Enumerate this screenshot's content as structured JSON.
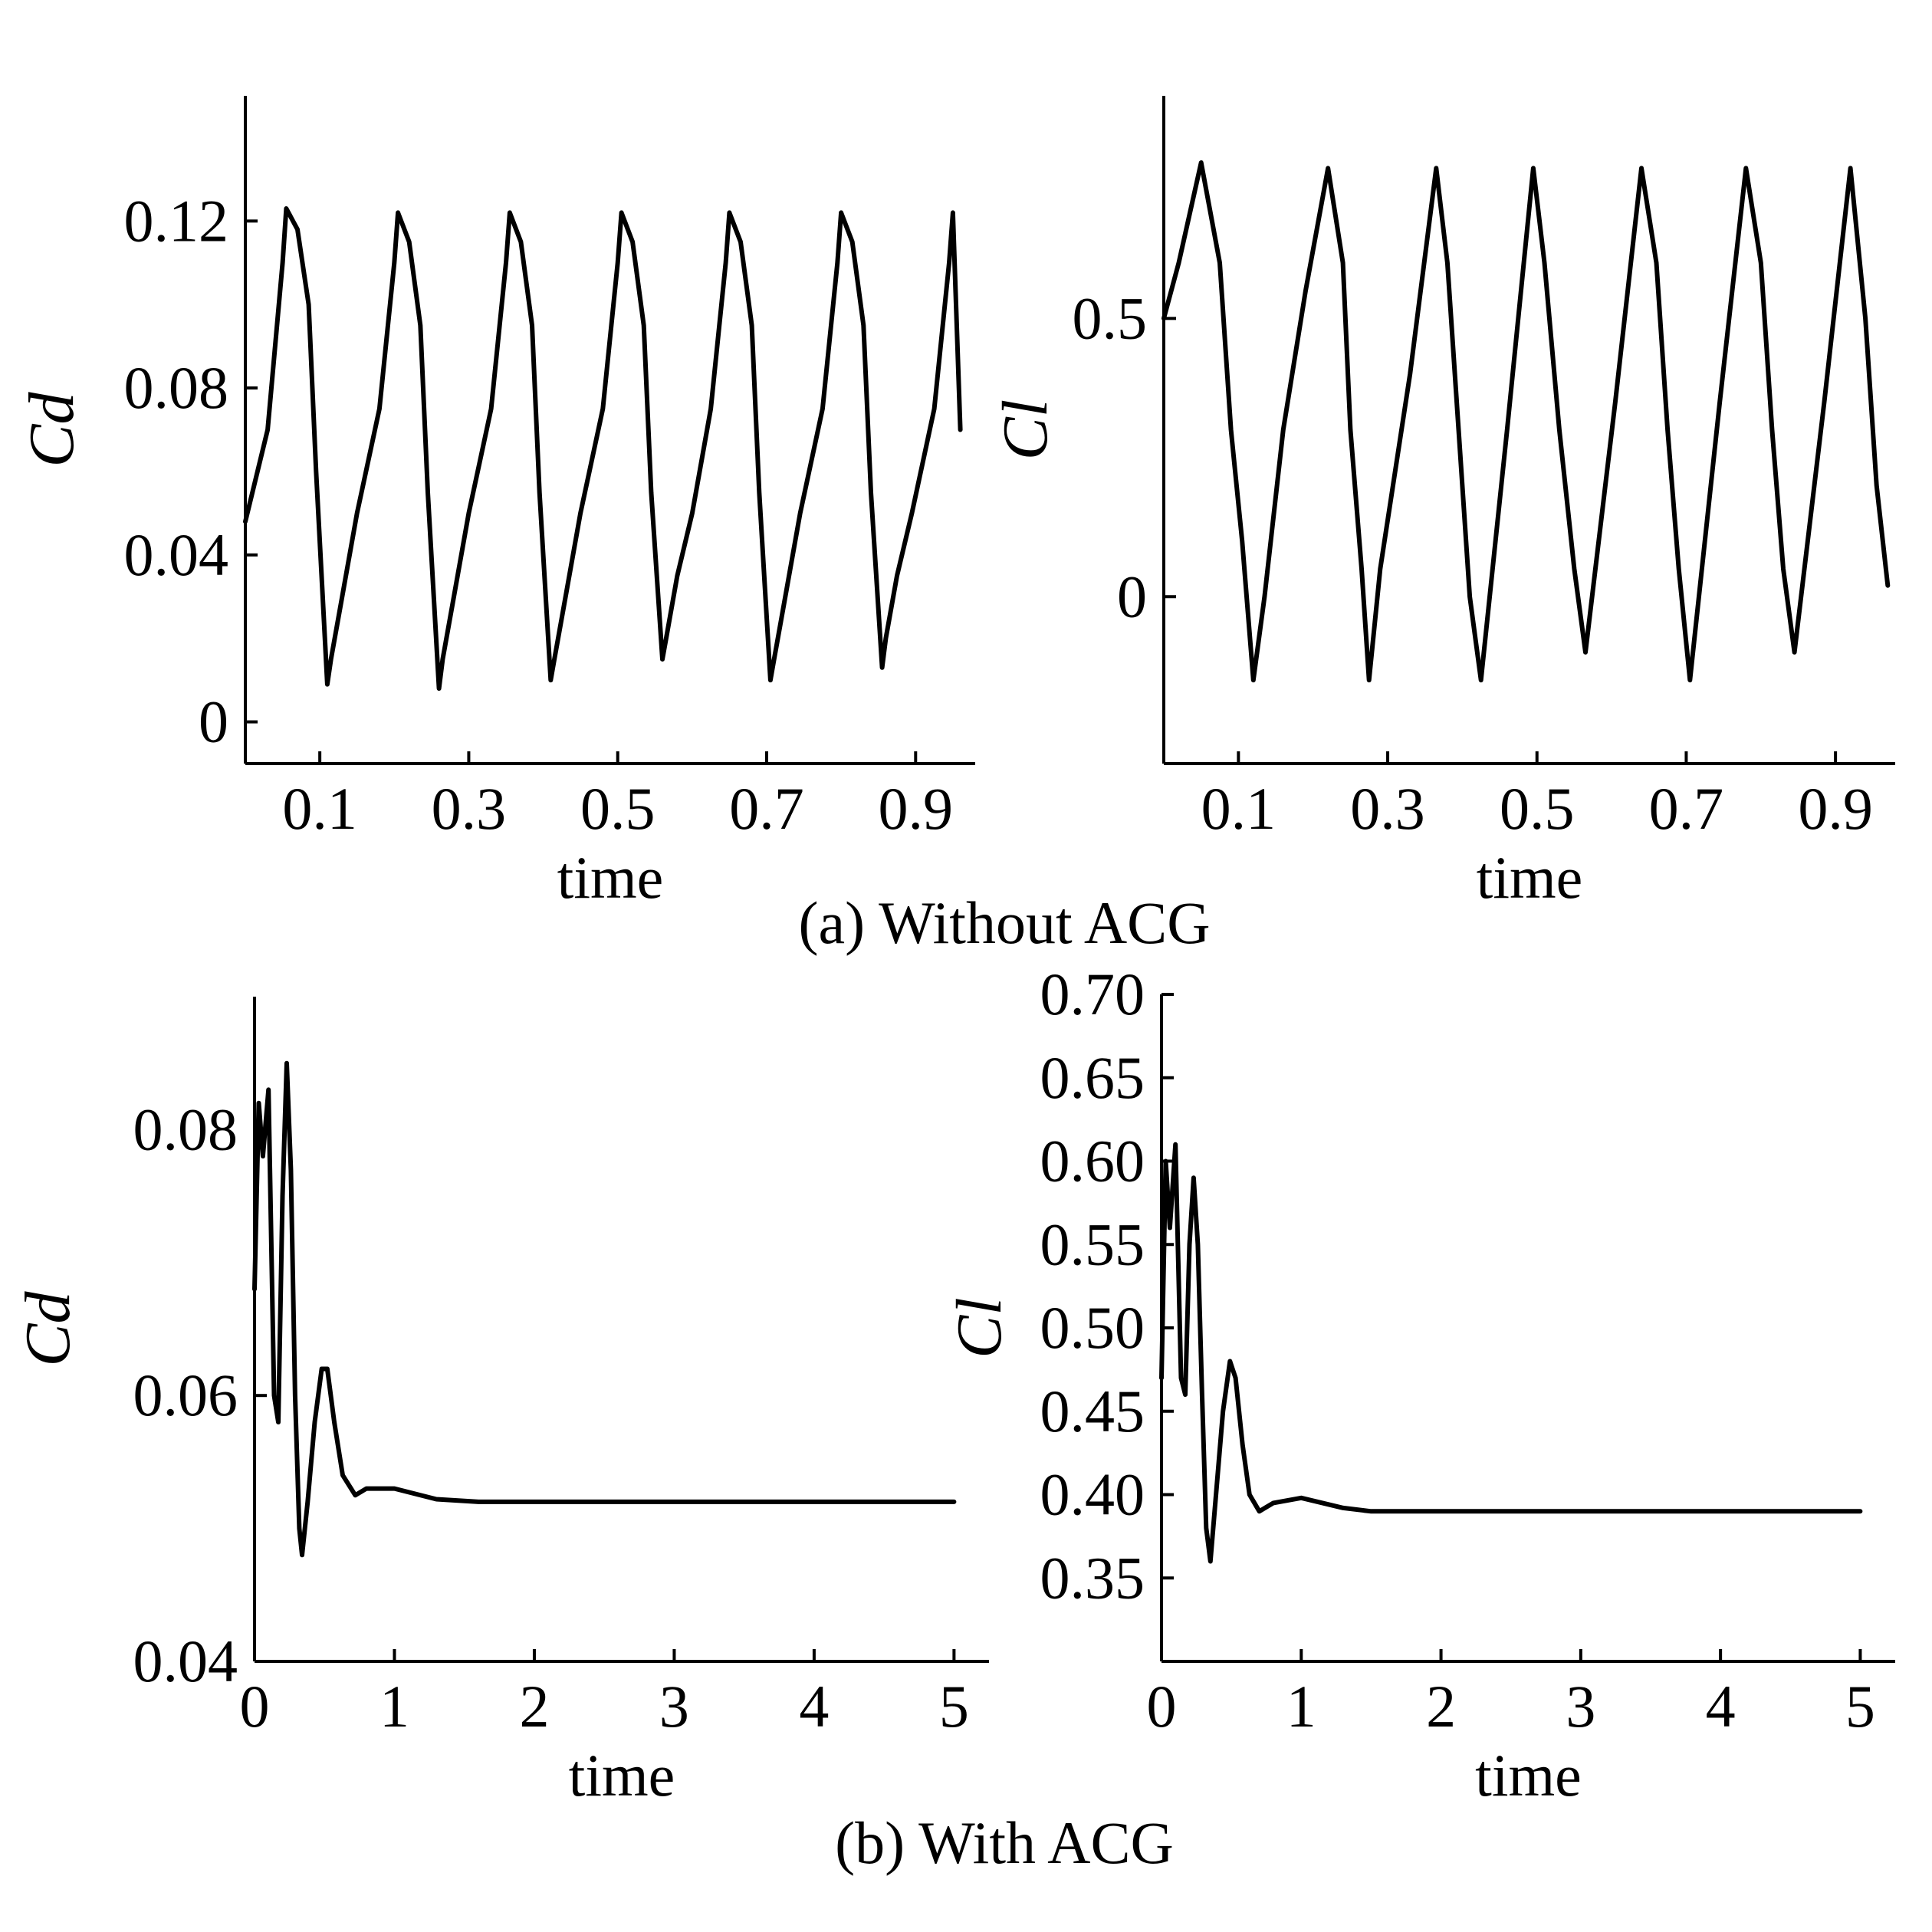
{
  "captions": [
    "(a) Without ACG",
    "(b) With ACG"
  ],
  "chart_data": [
    {
      "type": "line",
      "xlabel": "time",
      "ylabel": "Cd",
      "xlim": [
        0.0,
        0.98
      ],
      "ylim": [
        -0.01,
        0.15
      ],
      "xticks": [
        0.1,
        0.3,
        0.5,
        0.7,
        0.9
      ],
      "xtick_labels": [
        "0.1",
        "0.3",
        "0.5",
        "0.7",
        "0.9"
      ],
      "yticks": [
        0,
        0.04,
        0.08,
        0.12
      ],
      "ytick_labels": [
        "0",
        "0.04",
        "0.08",
        "0.12"
      ],
      "grid": false,
      "series": [
        {
          "x": [
            0.0,
            0.03,
            0.05,
            0.055,
            0.07,
            0.085,
            0.095,
            0.11,
            0.115,
            0.13,
            0.15,
            0.18,
            0.2,
            0.205,
            0.22,
            0.235,
            0.245,
            0.26,
            0.265,
            0.28,
            0.3,
            0.33,
            0.35,
            0.355,
            0.37,
            0.385,
            0.395,
            0.41,
            0.415,
            0.43,
            0.45,
            0.48,
            0.5,
            0.505,
            0.52,
            0.535,
            0.545,
            0.56,
            0.565,
            0.58,
            0.6,
            0.625,
            0.645,
            0.65,
            0.665,
            0.68,
            0.69,
            0.705,
            0.71,
            0.725,
            0.745,
            0.775,
            0.795,
            0.8,
            0.815,
            0.83,
            0.84,
            0.855,
            0.86,
            0.875,
            0.895,
            0.925,
            0.945,
            0.95,
            0.96
          ],
          "y": [
            0.048,
            0.07,
            0.11,
            0.123,
            0.118,
            0.1,
            0.06,
            0.009,
            0.015,
            0.03,
            0.05,
            0.075,
            0.11,
            0.122,
            0.115,
            0.095,
            0.055,
            0.008,
            0.015,
            0.03,
            0.05,
            0.075,
            0.11,
            0.122,
            0.115,
            0.095,
            0.055,
            0.01,
            0.015,
            0.03,
            0.05,
            0.075,
            0.11,
            0.122,
            0.115,
            0.095,
            0.055,
            0.015,
            0.02,
            0.035,
            0.05,
            0.075,
            0.11,
            0.122,
            0.115,
            0.095,
            0.055,
            0.01,
            0.015,
            0.03,
            0.05,
            0.075,
            0.11,
            0.122,
            0.115,
            0.095,
            0.055,
            0.013,
            0.02,
            0.035,
            0.05,
            0.075,
            0.11,
            0.122,
            0.07
          ]
        }
      ]
    },
    {
      "type": "line",
      "xlabel": "time",
      "ylabel": "Cl",
      "xlim": [
        0.0,
        0.98
      ],
      "ylim": [
        -0.3,
        0.9
      ],
      "xticks": [
        0.1,
        0.3,
        0.5,
        0.7,
        0.9
      ],
      "xtick_labels": [
        "0.1",
        "0.3",
        "0.5",
        "0.7",
        "0.9"
      ],
      "yticks": [
        0,
        0.5
      ],
      "ytick_labels": [
        "0",
        "0.5"
      ],
      "grid": false,
      "series": [
        {
          "x": [
            0.0,
            0.02,
            0.05,
            0.075,
            0.09,
            0.105,
            0.12,
            0.135,
            0.16,
            0.19,
            0.22,
            0.24,
            0.25,
            0.265,
            0.275,
            0.29,
            0.33,
            0.365,
            0.38,
            0.395,
            0.41,
            0.425,
            0.46,
            0.495,
            0.51,
            0.53,
            0.55,
            0.565,
            0.605,
            0.64,
            0.66,
            0.675,
            0.69,
            0.705,
            0.745,
            0.78,
            0.8,
            0.815,
            0.83,
            0.845,
            0.885,
            0.92,
            0.94,
            0.955,
            0.97
          ],
          "y": [
            0.5,
            0.6,
            0.78,
            0.6,
            0.3,
            0.1,
            -0.15,
            0.0,
            0.3,
            0.55,
            0.77,
            0.6,
            0.3,
            0.05,
            -0.15,
            0.05,
            0.4,
            0.77,
            0.6,
            0.3,
            0.0,
            -0.15,
            0.3,
            0.77,
            0.6,
            0.3,
            0.05,
            -0.1,
            0.35,
            0.77,
            0.6,
            0.3,
            0.05,
            -0.15,
            0.35,
            0.77,
            0.6,
            0.3,
            0.05,
            -0.1,
            0.35,
            0.77,
            0.5,
            0.2,
            0.02
          ]
        }
      ]
    },
    {
      "type": "line",
      "xlabel": "time",
      "ylabel": "Cd",
      "xlim": [
        0,
        5.25
      ],
      "ylim": [
        0.04,
        0.09
      ],
      "xticks": [
        0,
        1,
        2,
        3,
        4,
        5
      ],
      "xtick_labels": [
        "0",
        "1",
        "2",
        "3",
        "4",
        "5"
      ],
      "yticks": [
        0.04,
        0.06,
        0.08
      ],
      "ytick_labels": [
        "0.04",
        "0.06",
        "0.08"
      ],
      "grid": false,
      "series": [
        {
          "x": [
            0.0,
            0.03,
            0.06,
            0.1,
            0.14,
            0.17,
            0.2,
            0.23,
            0.26,
            0.29,
            0.32,
            0.34,
            0.38,
            0.43,
            0.48,
            0.52,
            0.57,
            0.63,
            0.72,
            0.8,
            1.0,
            1.3,
            1.6,
            2.0,
            3.0,
            4.0,
            5.0
          ],
          "y": [
            0.068,
            0.082,
            0.078,
            0.083,
            0.06,
            0.058,
            0.075,
            0.085,
            0.077,
            0.06,
            0.05,
            0.048,
            0.052,
            0.058,
            0.062,
            0.062,
            0.058,
            0.054,
            0.0525,
            0.053,
            0.053,
            0.0522,
            0.052,
            0.052,
            0.052,
            0.052,
            0.052
          ]
        }
      ]
    },
    {
      "type": "line",
      "xlabel": "time",
      "ylabel": "Cl",
      "xlim": [
        0,
        5.25
      ],
      "ylim": [
        0.3,
        0.7
      ],
      "xticks": [
        0,
        1,
        2,
        3,
        4,
        5
      ],
      "xtick_labels": [
        "0",
        "1",
        "2",
        "3",
        "4",
        "5"
      ],
      "yticks": [
        0.35,
        0.4,
        0.45,
        0.5,
        0.55,
        0.6,
        0.65,
        0.7
      ],
      "ytick_labels": [
        "0.35",
        "0.40",
        "0.45",
        "0.50",
        "0.55",
        "0.60",
        "0.65",
        "0.70"
      ],
      "grid": false,
      "series": [
        {
          "x": [
            0.0,
            0.03,
            0.06,
            0.1,
            0.14,
            0.17,
            0.2,
            0.23,
            0.26,
            0.29,
            0.32,
            0.35,
            0.39,
            0.44,
            0.49,
            0.53,
            0.58,
            0.63,
            0.7,
            0.8,
            1.0,
            1.3,
            1.5,
            2.0,
            3.0,
            4.0,
            5.0
          ],
          "y": [
            0.47,
            0.6,
            0.56,
            0.61,
            0.47,
            0.46,
            0.55,
            0.59,
            0.55,
            0.46,
            0.38,
            0.36,
            0.4,
            0.45,
            0.48,
            0.47,
            0.43,
            0.4,
            0.39,
            0.395,
            0.398,
            0.392,
            0.39,
            0.39,
            0.39,
            0.39,
            0.39
          ]
        }
      ]
    }
  ]
}
